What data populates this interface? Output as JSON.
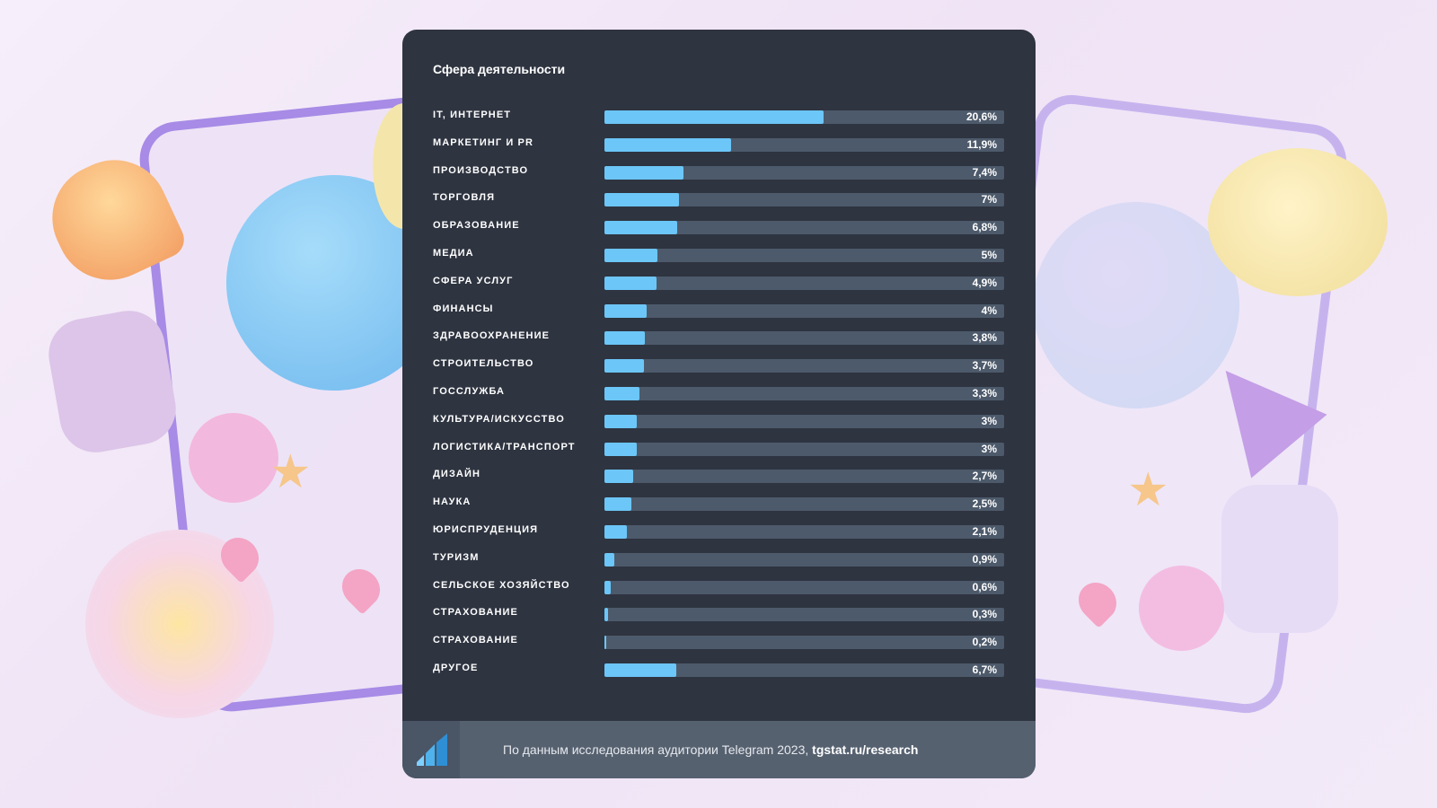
{
  "chart_data": {
    "type": "bar",
    "orientation": "horizontal",
    "title": "Сфера деятельности",
    "categories": [
      "IT, ИНТЕРНЕТ",
      "МАРКЕТИНГ И PR",
      "ПРОИЗВОДСТВО",
      "ТОРГОВЛЯ",
      "ОБРАЗОВАНИЕ",
      "МЕДИА",
      "СФЕРА УСЛУГ",
      "ФИНАНСЫ",
      "ЗДРАВООХРАНЕНИЕ",
      "СТРОИТЕЛЬСТВО",
      "ГОССЛУЖБА",
      "КУЛЬТУРА/ИСКУССТВО",
      "ЛОГИСТИКА/ТРАНСПОРТ",
      "ДИЗАЙН",
      "НАУКА",
      "ЮРИСПРУДЕНЦИЯ",
      "ТУРИЗМ",
      "СЕЛЬСКОЕ ХОЗЯЙСТВО",
      "СТРАХОВАНИЕ",
      "СТРАХОВАНИЕ",
      "ДРУГОЕ"
    ],
    "values": [
      20.6,
      11.9,
      7.4,
      7,
      6.8,
      5,
      4.9,
      4,
      3.8,
      3.7,
      3.3,
      3,
      3,
      2.7,
      2.5,
      2.1,
      0.9,
      0.6,
      0.3,
      0.2,
      6.7
    ],
    "value_labels": [
      "20,6%",
      "11,9%",
      "7,4%",
      "7%",
      "6,8%",
      "5%",
      "4,9%",
      "4%",
      "3,8%",
      "3,7%",
      "3,3%",
      "3%",
      "3%",
      "2,7%",
      "2,5%",
      "2,1%",
      "0,9%",
      "0,6%",
      "0,3%",
      "0,2%",
      "6,7%"
    ],
    "xlim": [
      0,
      37.5
    ],
    "unit": "%",
    "grid": false,
    "colors": {
      "bar": "#6cc6f7",
      "track": "#4d5a6b",
      "background": "#2e3440"
    }
  },
  "footer": {
    "text": "По данным исследования аудитории Telegram 2023,",
    "link": "tgstat.ru/research",
    "logo_icon": "tgstat-logo-icon"
  }
}
